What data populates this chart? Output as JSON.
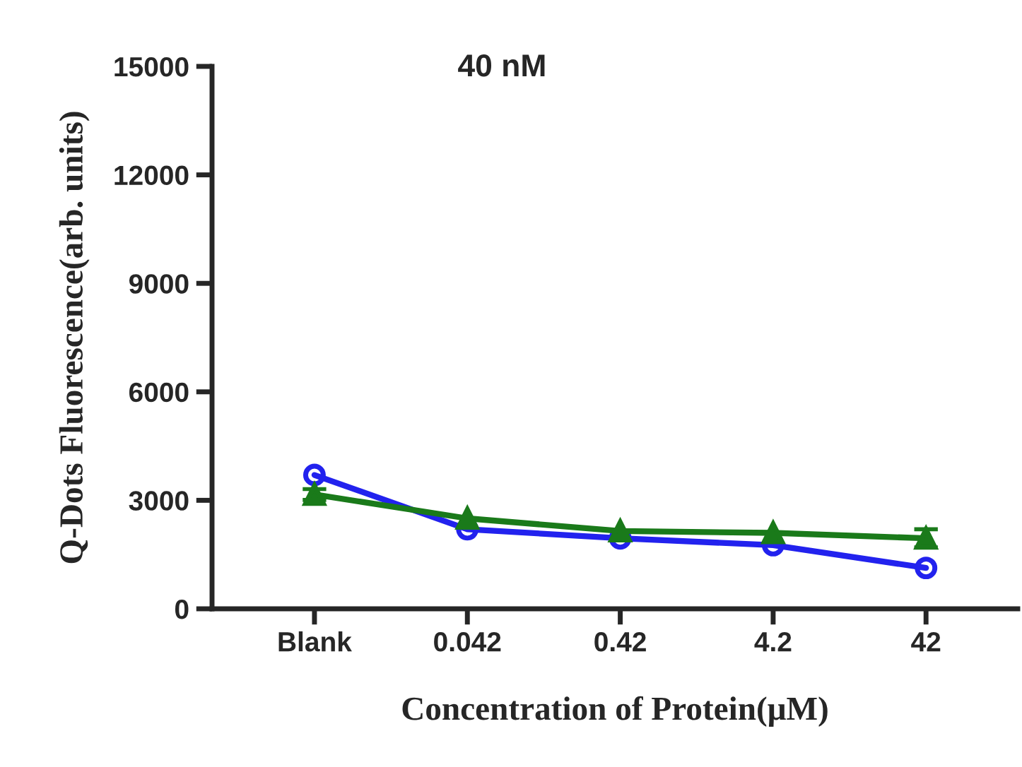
{
  "chart_data": {
    "type": "line",
    "title": "40 nM",
    "xlabel": "Concentration of Protein(μM)",
    "ylabel": "Q-Dots Fluorescence(arb. units)",
    "categories": [
      "Blank",
      "0.042",
      "0.42",
      "4.2",
      "42"
    ],
    "series": [
      {
        "color": "#1a7a1a",
        "marker": "triangle",
        "values": [
          3160,
          2500,
          2150,
          2100,
          1950
        ],
        "errors": [
          150,
          null,
          null,
          null,
          250
        ]
      },
      {
        "color": "#2222ee",
        "marker": "circle",
        "values": [
          3700,
          2200,
          1950,
          1760,
          1130
        ]
      }
    ],
    "ylim": [
      0,
      15000
    ],
    "yticks": [
      0,
      3000,
      6000,
      9000,
      12000,
      15000
    ],
    "grid": false,
    "legend": false
  }
}
